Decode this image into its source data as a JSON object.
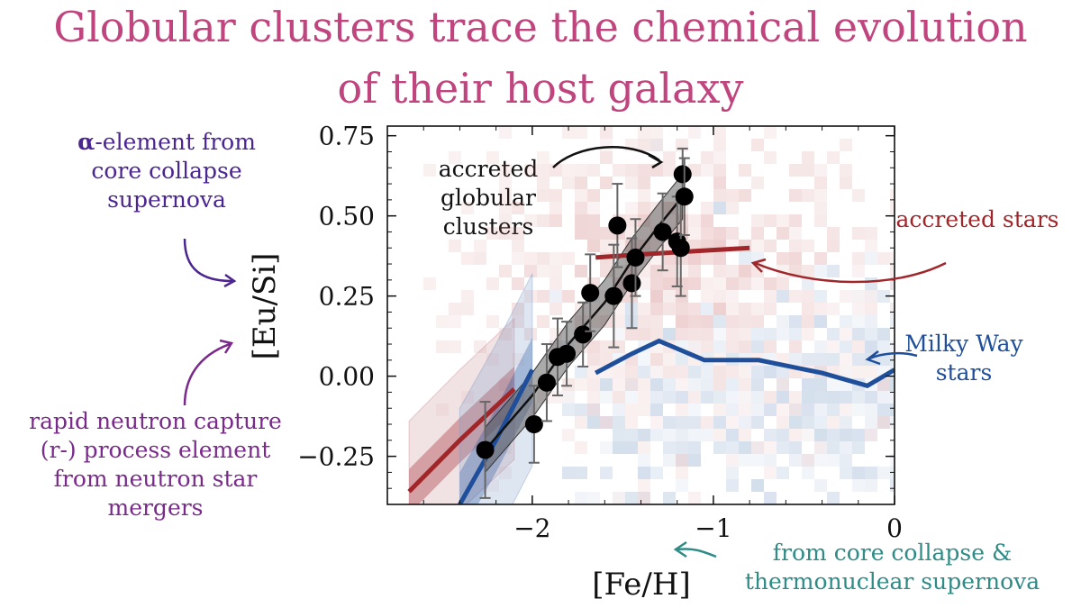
{
  "title_line1": "Globular clusters trace the chemical evolution",
  "title_line2": "of their host galaxy",
  "annotations": {
    "alpha_symbol": "α",
    "alpha_rest": "-element from core collapse supernova",
    "rprocess": "rapid neutron capture (r-) process element from neutron star mergers",
    "iron": "from core collapse & thermonuclear supernova",
    "accreted_gc": "accreted globular clusters",
    "accreted_stars": "accreted stars",
    "milky_way": "Milky Way stars"
  },
  "colors": {
    "title": "#c0457f",
    "accreted": "#a0262a",
    "milky_way": "#1f4f9a",
    "gc": "#111111"
  },
  "chart_data": {
    "type": "scatter",
    "xlabel": "[Fe/H]",
    "ylabel": "[Eu/Si]",
    "xlim": [
      -2.8,
      0.0
    ],
    "ylim": [
      -0.4,
      0.78
    ],
    "x_ticks": [
      -2,
      -1,
      0
    ],
    "x_tick_labels": [
      "−2",
      "−1",
      "0"
    ],
    "y_ticks": [
      0.75,
      0.5,
      0.25,
      0.0,
      -0.25
    ],
    "y_tick_labels": [
      "0.75",
      "0.50",
      "0.25",
      "0.00",
      "−0.25"
    ],
    "series": [
      {
        "name": "accreted globular clusters",
        "kind": "points",
        "x": [
          -2.26,
          -1.99,
          -1.92,
          -1.86,
          -1.81,
          -1.72,
          -1.68,
          -1.55,
          -1.53,
          -1.45,
          -1.43,
          -1.28,
          -1.2,
          -1.18,
          -1.17,
          -1.16
        ],
        "y": [
          -0.23,
          -0.15,
          -0.02,
          0.06,
          0.07,
          0.13,
          0.26,
          0.25,
          0.47,
          0.29,
          0.37,
          0.45,
          0.42,
          0.4,
          0.63,
          0.56
        ],
        "yerr": [
          0.15,
          0.12,
          0.12,
          0.12,
          0.1,
          0.1,
          0.12,
          0.16,
          0.13,
          0.14,
          0.12,
          0.12,
          0.14,
          0.15,
          0.08,
          0.12
        ]
      },
      {
        "name": "accreted globular clusters trend",
        "kind": "line",
        "x": [
          -2.26,
          -2.0,
          -1.8,
          -1.6,
          -1.45,
          -1.3,
          -1.17
        ],
        "y": [
          -0.23,
          -0.06,
          0.1,
          0.23,
          0.36,
          0.47,
          0.56
        ]
      },
      {
        "name": "accreted stars",
        "kind": "line",
        "x": [
          -2.68,
          -2.4,
          -2.1,
          -1.65,
          -1.4,
          -1.1,
          -0.8
        ],
        "y": [
          -0.36,
          -0.2,
          -0.04,
          0.37,
          0.38,
          0.39,
          0.4
        ]
      },
      {
        "name": "Milky Way stars",
        "kind": "line",
        "x": [
          -2.4,
          -2.2,
          -2.0,
          -1.65,
          -1.45,
          -1.3,
          -1.05,
          -0.75,
          -0.4,
          -0.15,
          0.0
        ],
        "y": [
          -0.4,
          -0.2,
          0.02,
          0.01,
          0.07,
          0.11,
          0.05,
          0.05,
          0.01,
          -0.03,
          0.02
        ]
      }
    ],
    "grid": false,
    "background_density": "red and blue 2D histograms of accreted and Milky Way stars"
  }
}
